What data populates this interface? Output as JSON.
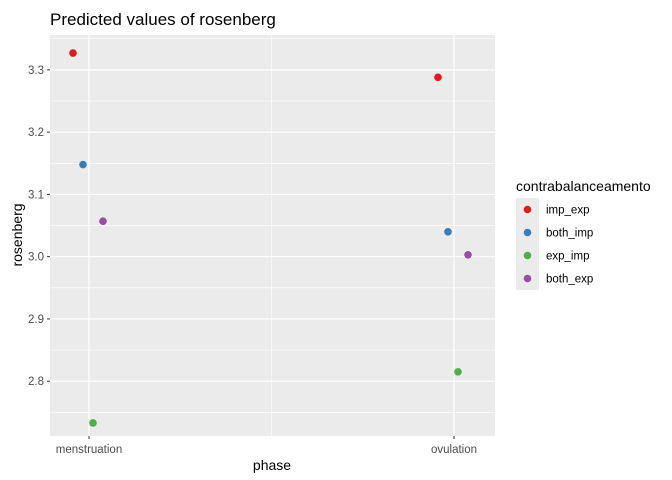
{
  "chart_data": {
    "type": "scatter",
    "title": "Predicted values of rosenberg",
    "xlabel": "phase",
    "ylabel": "rosenberg",
    "categories": [
      "menstruation",
      "ovulation"
    ],
    "ylim": [
      2.712,
      3.356
    ],
    "yticks": [
      2.8,
      2.9,
      3.0,
      3.1,
      3.2,
      3.3
    ],
    "ytick_labels": [
      "2.8",
      "2.9",
      "3.0",
      "3.1",
      "3.2",
      "3.3"
    ],
    "grid": true,
    "legend": {
      "title": "contrabalanceamento",
      "position": "right"
    },
    "series": [
      {
        "name": "imp_exp",
        "color": "#e41a1c",
        "values": [
          3.327,
          3.288
        ]
      },
      {
        "name": "both_imp",
        "color": "#377eb8",
        "values": [
          3.148,
          3.04
        ]
      },
      {
        "name": "exp_imp",
        "color": "#4daf4a",
        "values": [
          2.733,
          2.815
        ]
      },
      {
        "name": "both_exp",
        "color": "#984ea3",
        "values": [
          3.057,
          3.003
        ]
      }
    ]
  }
}
